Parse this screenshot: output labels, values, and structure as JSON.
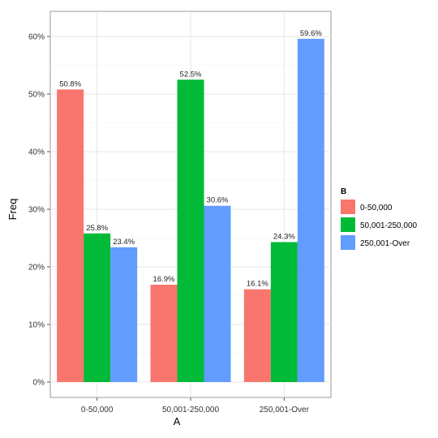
{
  "chart_data": {
    "type": "bar",
    "xlabel": "A",
    "ylabel": "Freq",
    "ylim": [
      0,
      0.62
    ],
    "y_ticks": [
      0,
      0.1,
      0.2,
      0.3,
      0.4,
      0.5,
      0.6
    ],
    "y_tick_labels": [
      "0%",
      "10%",
      "20%",
      "30%",
      "40%",
      "50%",
      "60%"
    ],
    "categories": [
      "0-50,000",
      "50,001-250,000",
      "250,001-Over"
    ],
    "legend_title": "B",
    "legend_position": "right",
    "grid": true,
    "series": [
      {
        "name": "0-50,000",
        "color": "#F8766D",
        "values": [
          0.508,
          0.169,
          0.161
        ],
        "labels": [
          "50.8%",
          "16.9%",
          "16.1%"
        ]
      },
      {
        "name": "50,001-250,000",
        "color": "#00BA38",
        "values": [
          0.258,
          0.525,
          0.243
        ],
        "labels": [
          "25.8%",
          "52.5%",
          "24.3%"
        ]
      },
      {
        "name": "250,001-Over",
        "color": "#619CFF",
        "values": [
          0.234,
          0.306,
          0.596
        ],
        "labels": [
          "23.4%",
          "30.6%",
          "59.6%"
        ]
      }
    ]
  }
}
